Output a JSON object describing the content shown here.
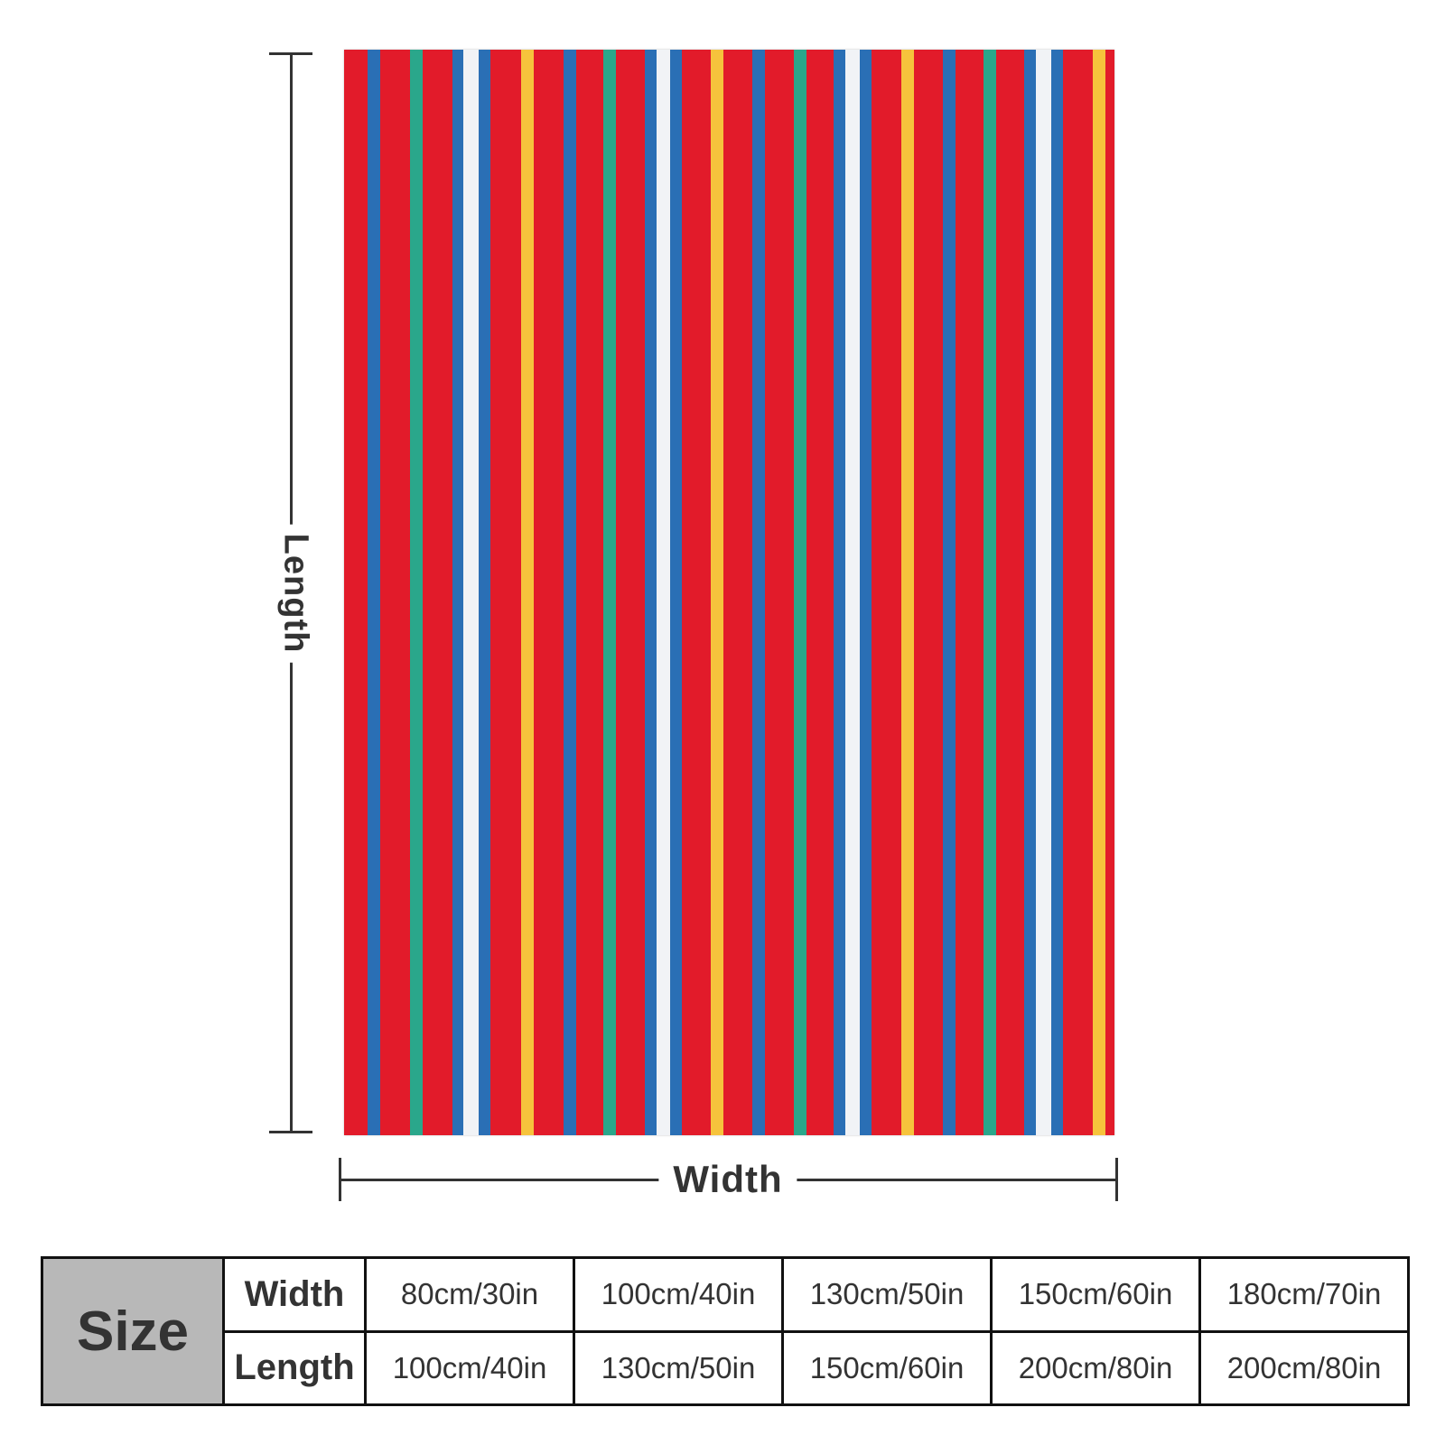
{
  "dimensions": {
    "length_label": "Length",
    "width_label": "Width"
  },
  "blanket": {
    "background_color": "#e21b2a",
    "stripe_colors": {
      "blue": "#2a6fb5",
      "green": "#2aa78b",
      "white": "#f1f3f6",
      "yellow": "#f6c33c"
    }
  },
  "size_table": {
    "heading": "Size",
    "rows": [
      {
        "label": "Width",
        "values": [
          "80cm/30in",
          "100cm/40in",
          "130cm/50in",
          "150cm/60in",
          "180cm/70in"
        ]
      },
      {
        "label": "Length",
        "values": [
          "100cm/40in",
          "130cm/50in",
          "150cm/60in",
          "200cm/80in",
          "200cm/80in"
        ]
      }
    ]
  }
}
